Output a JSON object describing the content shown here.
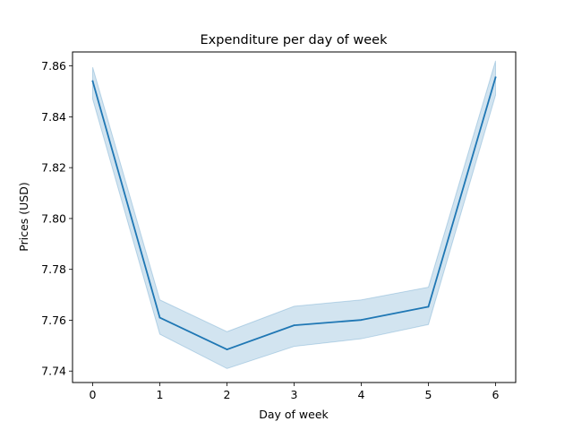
{
  "chart_data": {
    "type": "line",
    "title": "Expenditure per day of week",
    "xlabel": "Day of week",
    "ylabel": "Prices (USD)",
    "x": [
      0,
      1,
      2,
      3,
      4,
      5,
      6
    ],
    "series": [
      {
        "values": [
          7.854,
          7.761,
          7.7485,
          7.758,
          7.7601,
          7.7653,
          7.8555
        ],
        "ci_upper": [
          7.8595,
          7.768,
          7.7555,
          7.7655,
          7.768,
          7.773,
          7.862
        ],
        "ci_lower": [
          7.847,
          7.7545,
          7.741,
          7.7497,
          7.7527,
          7.7583,
          7.8485
        ],
        "color": "#1f77b4",
        "band_color": "#1f77b4"
      }
    ],
    "xticks": [
      0,
      1,
      2,
      3,
      4,
      5,
      6
    ],
    "xtick_labels": [
      "0",
      "1",
      "2",
      "3",
      "4",
      "5",
      "6"
    ],
    "yticks": [
      7.74,
      7.76,
      7.78,
      7.8,
      7.82,
      7.84,
      7.86
    ],
    "ytick_labels": [
      "7.74",
      "7.76",
      "7.78",
      "7.80",
      "7.82",
      "7.84",
      "7.86"
    ],
    "xlim": [
      -0.3,
      6.3
    ],
    "ylim": [
      7.7355,
      7.8655
    ],
    "grid": false,
    "legend": "none"
  }
}
